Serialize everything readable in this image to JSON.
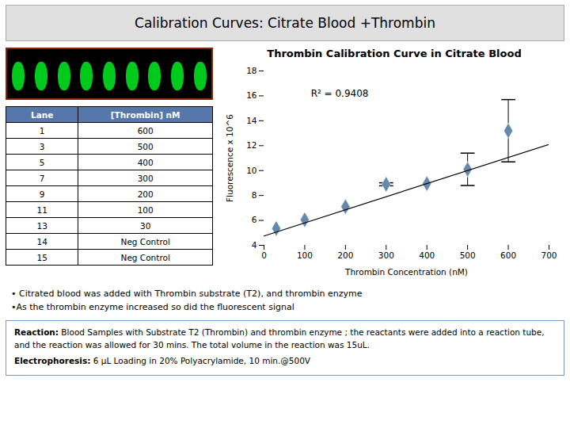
{
  "title": "Calibration Curves: Citrate Blood +Thrombin",
  "table": {
    "columns": [
      "Lane",
      "[Thrombin] nM"
    ],
    "color": "#5577aa",
    "rows": [
      [
        "1",
        "600"
      ],
      [
        "3",
        "500"
      ],
      [
        "5",
        "400"
      ],
      [
        "7",
        "300"
      ],
      [
        "9",
        "200"
      ],
      [
        "11",
        "100"
      ],
      [
        "13",
        "30"
      ],
      [
        "14",
        "Neg Control"
      ],
      [
        "15",
        "Neg Control"
      ]
    ]
  },
  "notes": [
    "• Citrated blood was added with Thrombin substrate (T2), and thrombin enzyme",
    "•As the thrombin enzyme increased so did the fluorescent signal"
  ],
  "reaction": [
    {
      "bold": "Reaction:",
      "text": " Blood Samples with Substrate T2 (Thrombin) and thrombin enzyme ; the reactants were added into a reaction tube, and the reaction was allowed for 30 mins. The total volume in the reaction was 15uL."
    },
    {
      "bold": "Electrophoresis:",
      "text": " 6 μL Loading in 20% Polyacrylamide, 10 min.@500V"
    }
  ],
  "chart_data": {
    "type": "scatter",
    "title": "Thrombin Calibration Curve in Citrate Blood",
    "xlabel": "Thrombin Concentration (nM)",
    "ylabel": "Fluorescence x 10^6",
    "xlim": [
      0,
      700
    ],
    "xticks": [
      0,
      100,
      200,
      300,
      400,
      500,
      600,
      700
    ],
    "ylim": [
      4,
      18
    ],
    "yticks": [
      4,
      6,
      8,
      10,
      12,
      14,
      16,
      18
    ],
    "grid": false,
    "legend": false,
    "series": [
      {
        "type": "scatter",
        "marker": "diamond",
        "color": "#6688aa",
        "x": [
          30,
          100,
          200,
          300,
          400,
          500,
          600
        ],
        "values": [
          5.35,
          6.05,
          7.1,
          8.9,
          8.95,
          10.1,
          13.2
        ],
        "errors": [
          null,
          null,
          null,
          0.12,
          null,
          1.3,
          2.5
        ]
      },
      {
        "type": "line",
        "line_style": "solid",
        "color": "#000000",
        "x": [
          0,
          700
        ],
        "values": [
          4.75,
          12.1
        ]
      }
    ],
    "annotations": [
      {
        "x": 115,
        "y": 16.2,
        "text": "R² = 0.9408"
      }
    ]
  }
}
